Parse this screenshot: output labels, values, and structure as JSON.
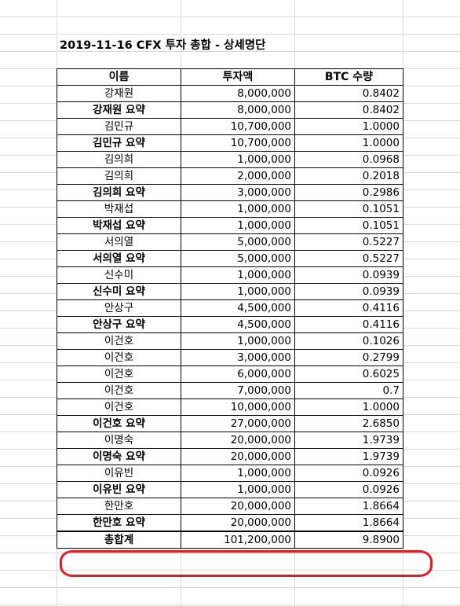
{
  "title": "2019-11-16 CFX 투자 총합 - 상세명단",
  "headers": [
    "이름",
    "투자액",
    "BTC 수량"
  ],
  "rows": [
    {
      "name": "강재원",
      "amount": "8,000,000",
      "btc": "0.8402",
      "summary": false
    },
    {
      "name": "강재원 요약",
      "amount": "8,000,000",
      "btc": "0.8402",
      "summary": true
    },
    {
      "name": "김민규",
      "amount": "10,700,000",
      "btc": "1.0000",
      "summary": false
    },
    {
      "name": "김민규 요약",
      "amount": "10,700,000",
      "btc": "1.0000",
      "summary": true
    },
    {
      "name": "김의희",
      "amount": "1,000,000",
      "btc": "0.0968",
      "summary": false
    },
    {
      "name": "김의희",
      "amount": "2,000,000",
      "btc": "0.2018",
      "summary": false
    },
    {
      "name": "김의희 요약",
      "amount": "3,000,000",
      "btc": "0.2986",
      "summary": true
    },
    {
      "name": "박재섭",
      "amount": "1,000,000",
      "btc": "0.1051",
      "summary": false
    },
    {
      "name": "박재섭 요약",
      "amount": "1,000,000",
      "btc": "0.1051",
      "summary": true
    },
    {
      "name": "서의열",
      "amount": "5,000,000",
      "btc": "0.5227",
      "summary": false
    },
    {
      "name": "서의열 요약",
      "amount": "5,000,000",
      "btc": "0.5227",
      "summary": true
    },
    {
      "name": "신수미",
      "amount": "1,000,000",
      "btc": "0.0939",
      "summary": false
    },
    {
      "name": "신수미 요약",
      "amount": "1,000,000",
      "btc": "0.0939",
      "summary": true
    },
    {
      "name": "안상구",
      "amount": "4,500,000",
      "btc": "0.4116",
      "summary": false
    },
    {
      "name": "안상구 요약",
      "amount": "4,500,000",
      "btc": "0.4116",
      "summary": true
    },
    {
      "name": "이건호",
      "amount": "1,000,000",
      "btc": "0.1026",
      "summary": false
    },
    {
      "name": "이건호",
      "amount": "3,000,000",
      "btc": "0.2799",
      "summary": false
    },
    {
      "name": "이건호",
      "amount": "6,000,000",
      "btc": "0.6025",
      "summary": false
    },
    {
      "name": "이건호",
      "amount": "7,000,000",
      "btc": "0.7",
      "summary": false
    },
    {
      "name": "이건호",
      "amount": "10,000,000",
      "btc": "1.0000",
      "summary": false
    },
    {
      "name": "이건호 요약",
      "amount": "27,000,000",
      "btc": "2.6850",
      "summary": true
    },
    {
      "name": "이명숙",
      "amount": "20,000,000",
      "btc": "1.9739",
      "summary": false
    },
    {
      "name": "이명숙 요약",
      "amount": "20,000,000",
      "btc": "1.9739",
      "summary": true
    },
    {
      "name": "이유빈",
      "amount": "1,000,000",
      "btc": "0.0926",
      "summary": false
    },
    {
      "name": "이유빈 요약",
      "amount": "1,000,000",
      "btc": "0.0926",
      "summary": true
    },
    {
      "name": "한만호",
      "amount": "20,000,000",
      "btc": "1.8664",
      "summary": false
    },
    {
      "name": "한만호 요약",
      "amount": "20,000,000",
      "btc": "1.8664",
      "summary": true
    }
  ],
  "total": {
    "name": "총합계",
    "amount": "101,200,000",
    "btc": "9.8900"
  },
  "colors": {
    "highlight": "#e31b23",
    "gridline": "#d9d9d9"
  }
}
